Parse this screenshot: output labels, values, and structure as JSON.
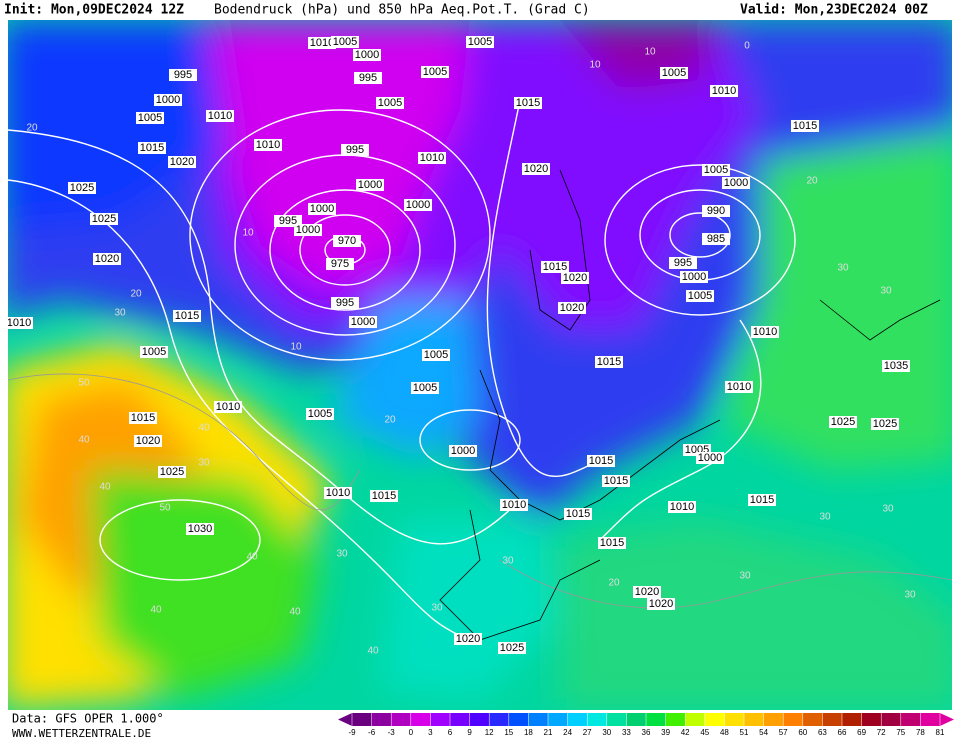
{
  "header": {
    "init": "Init: Mon,09DEC2024 12Z",
    "title": "Bodendruck (hPa) und 850 hPa Aeq.Pot.T. (Grad C)",
    "valid": "Valid: Mon,23DEC2024 00Z"
  },
  "map": {
    "isobar_labels": [
      "1010",
      "1005",
      "1000",
      "1005",
      "995",
      "995",
      "1005",
      "1005",
      "1000",
      "1005",
      "1015",
      "1010",
      "1005",
      "1010",
      "1015",
      "1015",
      "1010",
      "1010",
      "1020",
      "995",
      "1020",
      "1005",
      "1000",
      "1025",
      "1000",
      "1000",
      "990",
      "1025",
      "1000",
      "995",
      "1000",
      "970",
      "985",
      "1020",
      "975",
      "995",
      "1000",
      "1015",
      "1020",
      "1005",
      "995",
      "1020",
      "1015",
      "1000",
      "1010",
      "1010",
      "1005",
      "1005",
      "1015",
      "1035",
      "1010",
      "1005",
      "1015",
      "1010",
      "1005",
      "1025",
      "1025",
      "1020",
      "1000",
      "1005",
      "1000",
      "1015",
      "1025",
      "1015",
      "1010",
      "1015",
      "1015",
      "1010",
      "1015",
      "1010",
      "1030",
      "1015",
      "1020",
      "1020",
      "1020",
      "1025"
    ],
    "theta_labels": [
      "20",
      "10",
      "20",
      "30",
      "50",
      "40",
      "40",
      "30",
      "40",
      "50",
      "40",
      "30",
      "40",
      "40",
      "40",
      "30",
      "30",
      "30",
      "30",
      "30",
      "30",
      "20",
      "10",
      "20",
      "30",
      "30",
      "20",
      "10",
      "10",
      "0"
    ]
  },
  "colorbar": {
    "values": [
      -9,
      -6,
      -3,
      0,
      3,
      6,
      9,
      12,
      15,
      18,
      21,
      24,
      27,
      30,
      33,
      36,
      39,
      42,
      45,
      48,
      51,
      54,
      57,
      60,
      63,
      66,
      69,
      72,
      75,
      78,
      81
    ],
    "colors": [
      "#6a0080",
      "#8c00a0",
      "#b000c0",
      "#d800e8",
      "#a000ff",
      "#7800ff",
      "#5000ff",
      "#2828ff",
      "#0050ff",
      "#0080ff",
      "#00a8ff",
      "#00d0ff",
      "#00e8e0",
      "#00e0a0",
      "#00d070",
      "#00e040",
      "#40f000",
      "#c0ff00",
      "#ffff00",
      "#ffe000",
      "#ffc000",
      "#ffa000",
      "#ff8000",
      "#e06000",
      "#c84000",
      "#b02000",
      "#a00020",
      "#a00040",
      "#c00070",
      "#e000a0"
    ]
  },
  "footer": {
    "data": "Data: GFS OPER 1.000°",
    "source": "WWW.WETTERZENTRALE.DE"
  }
}
